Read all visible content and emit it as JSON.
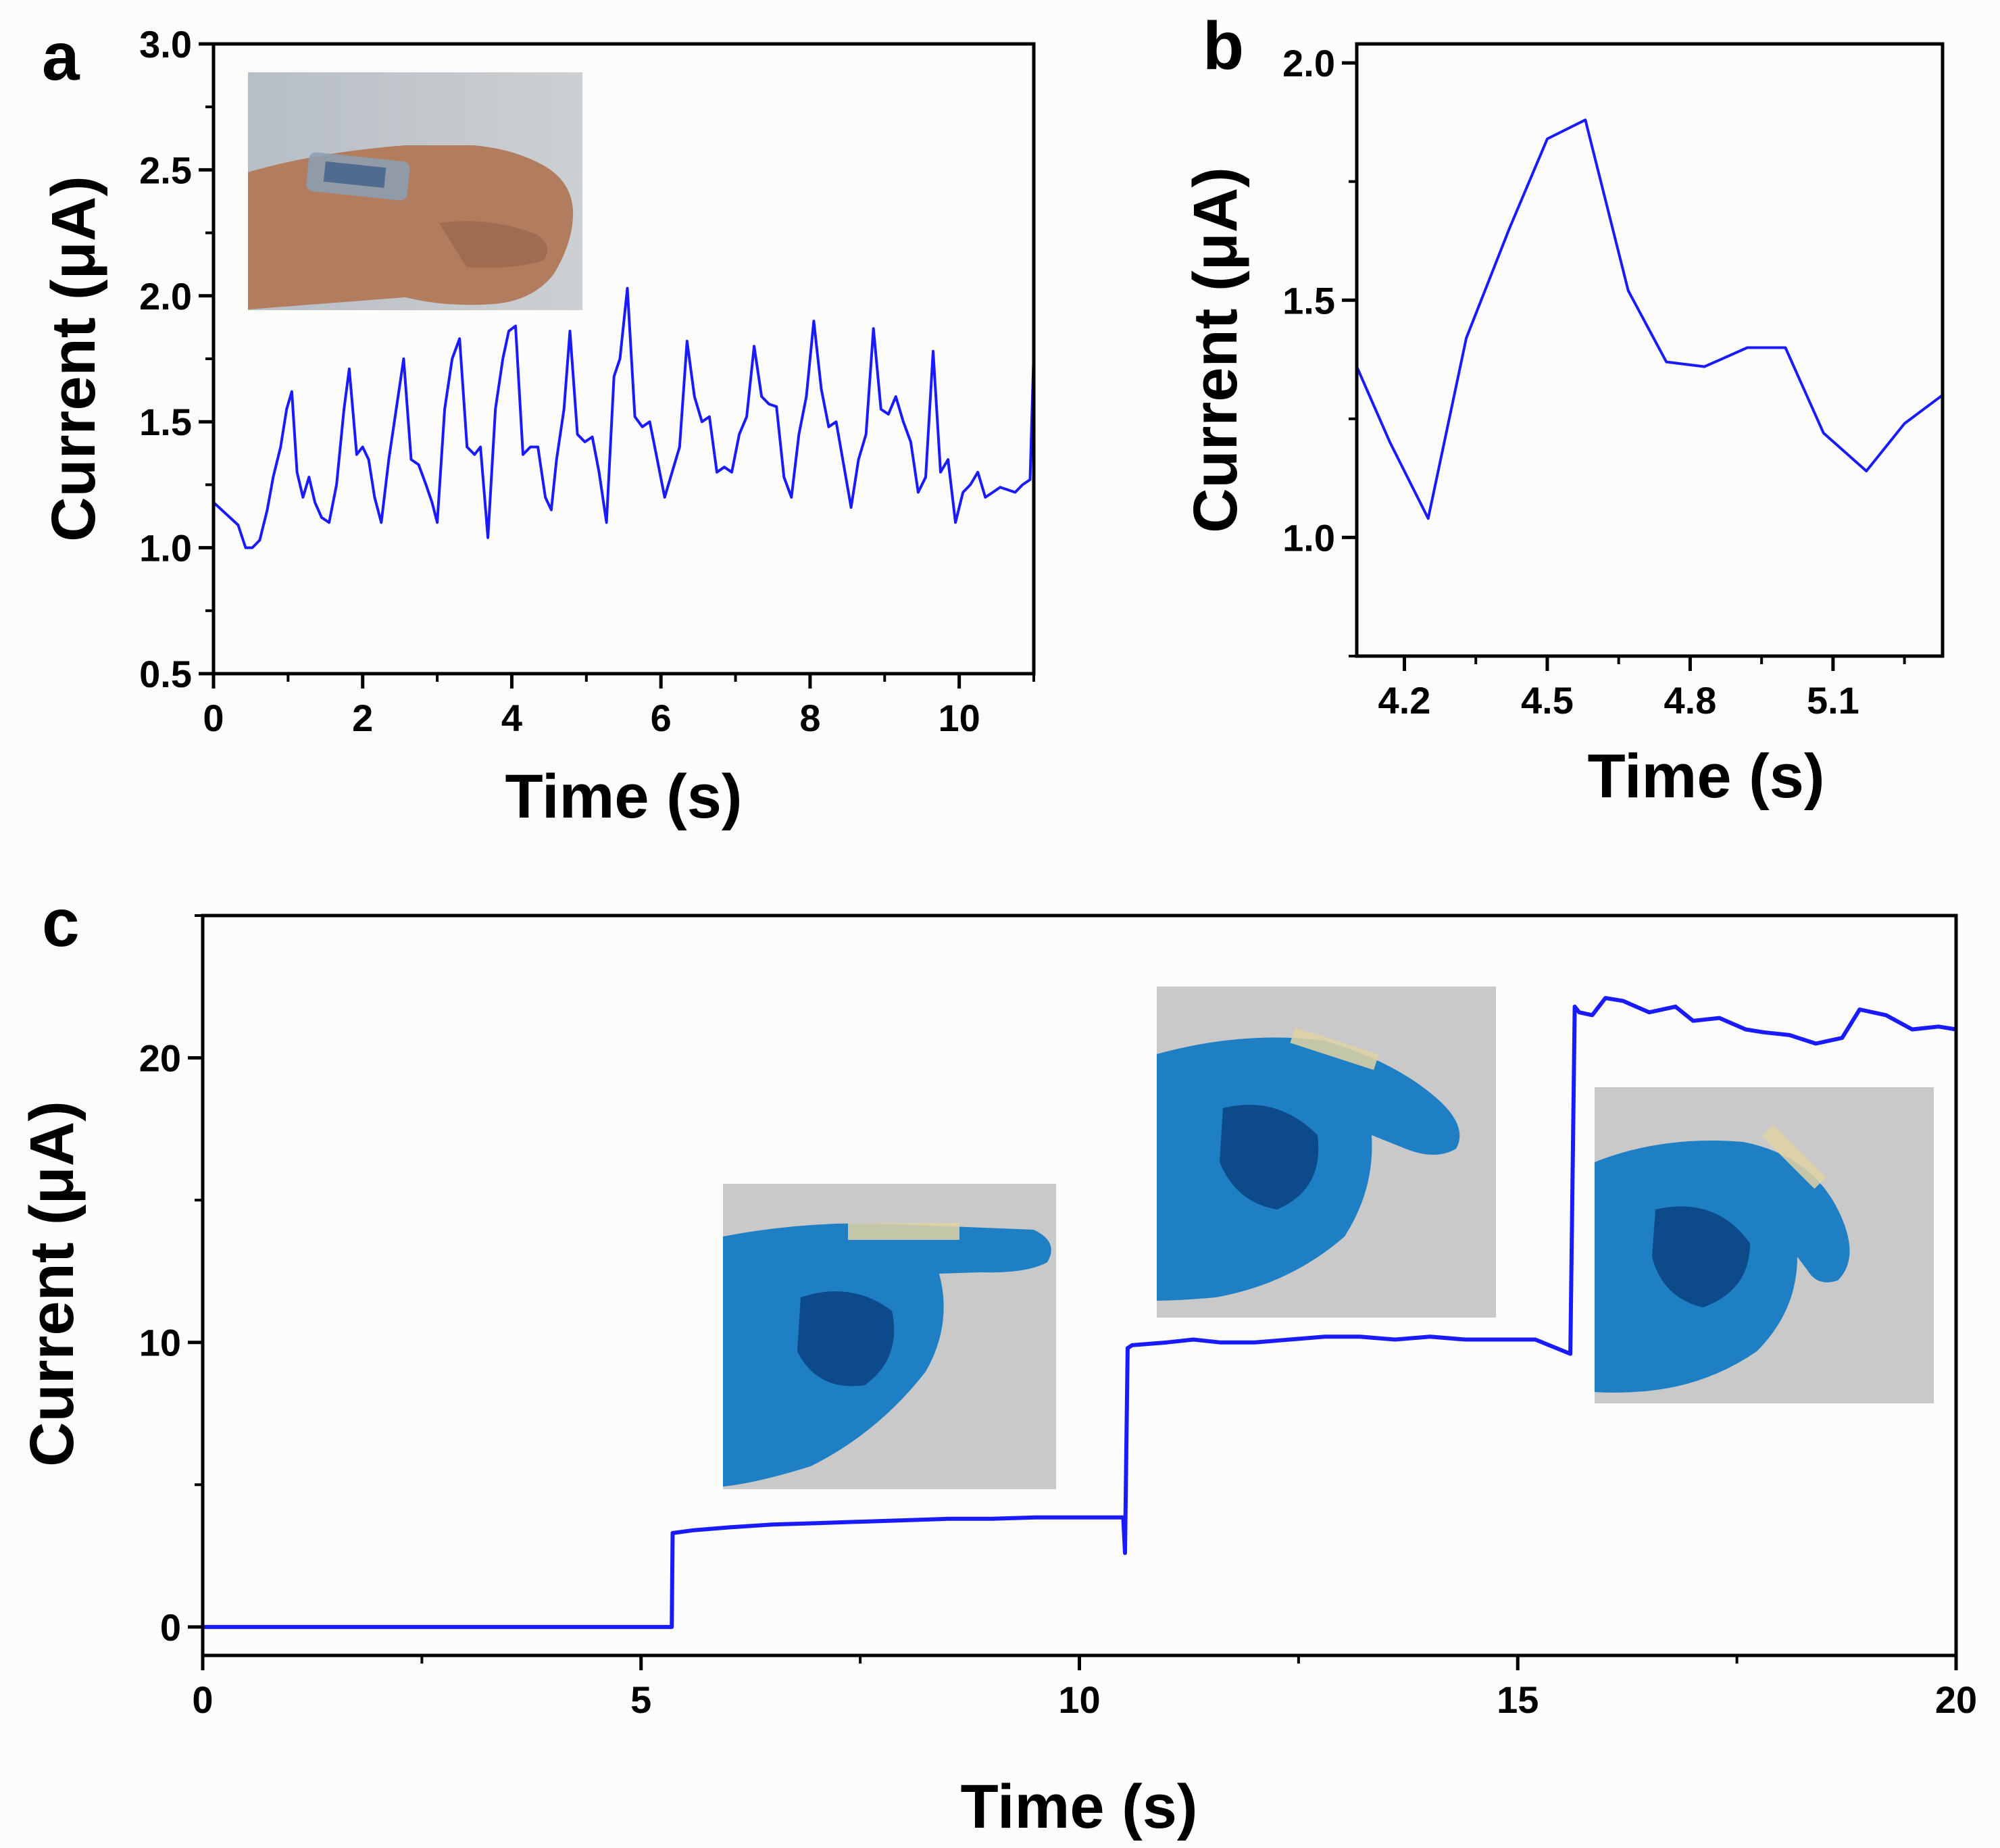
{
  "chart_data": [
    {
      "panel": "a",
      "type": "line",
      "xlabel": "Time (s)",
      "ylabel": "Current (μA)",
      "xlim": [
        0,
        11
      ],
      "ylim": [
        0.5,
        3.0
      ],
      "xticks": [
        0,
        2,
        4,
        6,
        8,
        10
      ],
      "yticks": [
        0.5,
        1.0,
        1.5,
        2.0,
        2.5,
        3.0
      ],
      "xtick_labels": [
        "0",
        "2",
        "4",
        "6",
        "8",
        "10"
      ],
      "ytick_labels": [
        "0.5",
        "1.0",
        "1.5",
        "2.0",
        "2.5",
        "3.0"
      ],
      "inset": "photo of sensor attached to wrist of clenched fist",
      "color": "#1a1aff",
      "x": [
        0,
        0.33,
        0.43,
        0.52,
        0.62,
        0.72,
        0.8,
        0.9,
        0.98,
        1.05,
        1.12,
        1.2,
        1.28,
        1.36,
        1.45,
        1.55,
        1.65,
        1.75,
        1.82,
        1.92,
        2.0,
        2.08,
        2.16,
        2.25,
        2.35,
        2.45,
        2.55,
        2.65,
        2.75,
        2.85,
        2.93,
        3.0,
        3.1,
        3.2,
        3.3,
        3.4,
        3.5,
        3.58,
        3.68,
        3.78,
        3.88,
        3.96,
        4.05,
        4.15,
        4.25,
        4.35,
        4.45,
        4.53,
        4.6,
        4.7,
        4.78,
        4.88,
        4.98,
        5.08,
        5.17,
        5.27,
        5.37,
        5.45,
        5.55,
        5.65,
        5.75,
        5.85,
        5.95,
        6.05,
        6.15,
        6.25,
        6.35,
        6.45,
        6.55,
        6.65,
        6.75,
        6.85,
        6.95,
        7.05,
        7.15,
        7.25,
        7.35,
        7.45,
        7.55,
        7.65,
        7.75,
        7.85,
        7.95,
        8.05,
        8.15,
        8.25,
        8.35,
        8.45,
        8.55,
        8.65,
        8.75,
        8.85,
        8.95,
        9.05,
        9.15,
        9.25,
        9.35,
        9.45,
        9.55,
        9.65,
        9.75,
        9.85,
        9.95,
        10.05,
        10.15,
        10.25,
        10.35,
        10.45,
        10.55,
        10.65,
        10.75,
        10.85,
        10.95,
        11.0
      ],
      "y": [
        1.18,
        1.09,
        1.0,
        1.0,
        1.03,
        1.15,
        1.28,
        1.4,
        1.55,
        1.62,
        1.3,
        1.2,
        1.28,
        1.18,
        1.12,
        1.1,
        1.25,
        1.55,
        1.71,
        1.37,
        1.4,
        1.35,
        1.2,
        1.1,
        1.35,
        1.55,
        1.75,
        1.35,
        1.33,
        1.25,
        1.18,
        1.1,
        1.55,
        1.75,
        1.83,
        1.4,
        1.37,
        1.4,
        1.04,
        1.55,
        1.75,
        1.86,
        1.88,
        1.37,
        1.4,
        1.4,
        1.2,
        1.15,
        1.35,
        1.55,
        1.86,
        1.45,
        1.42,
        1.44,
        1.3,
        1.1,
        1.68,
        1.75,
        2.03,
        1.52,
        1.48,
        1.5,
        1.35,
        1.2,
        1.3,
        1.4,
        1.82,
        1.6,
        1.5,
        1.52,
        1.3,
        1.32,
        1.3,
        1.45,
        1.52,
        1.8,
        1.6,
        1.57,
        1.56,
        1.28,
        1.2,
        1.45,
        1.6,
        1.9,
        1.63,
        1.48,
        1.5,
        1.33,
        1.16,
        1.35,
        1.45,
        1.87,
        1.55,
        1.53,
        1.6,
        1.5,
        1.42,
        1.22,
        1.28,
        1.78,
        1.3,
        1.35,
        1.1,
        1.22,
        1.25,
        1.3,
        1.2,
        1.22,
        1.24,
        1.23,
        1.22,
        1.25,
        1.27,
        1.78
      ]
    },
    {
      "panel": "b",
      "type": "line",
      "xlabel": "Time (s)",
      "ylabel": "Current (μA)",
      "xlim": [
        4.1,
        5.33
      ],
      "ylim": [
        0.75,
        2.04
      ],
      "xticks": [
        4.2,
        4.5,
        4.8,
        5.1
      ],
      "yticks": [
        1.0,
        1.5,
        2.0
      ],
      "xtick_labels": [
        "4.2",
        "4.5",
        "4.8",
        "5.1"
      ],
      "ytick_labels": [
        "1.0",
        "1.5",
        "2.0"
      ],
      "color": "#1a1aff",
      "x": [
        4.1,
        4.17,
        4.25,
        4.33,
        4.42,
        4.5,
        4.58,
        4.67,
        4.75,
        4.83,
        4.92,
        5.0,
        5.08,
        5.17,
        5.25,
        5.33
      ],
      "y": [
        1.36,
        1.2,
        1.04,
        1.42,
        1.65,
        1.84,
        1.88,
        1.52,
        1.37,
        1.36,
        1.4,
        1.4,
        1.22,
        1.14,
        1.24,
        1.3
      ]
    },
    {
      "panel": "c",
      "type": "line",
      "xlabel": "Time (s)",
      "ylabel": "Current (μA)",
      "xlim": [
        0,
        20
      ],
      "ylim": [
        -1,
        25
      ],
      "xticks": [
        0,
        5,
        10,
        15,
        20
      ],
      "yticks": [
        0,
        10,
        20
      ],
      "xtick_labels": [
        "0",
        "5",
        "10",
        "15",
        "20"
      ],
      "ytick_labels": [
        "0",
        "10",
        "20"
      ],
      "insets": [
        "photo of gloved finger straight with sensor",
        "photo of gloved finger slightly bent",
        "photo of gloved finger fully bent"
      ],
      "color": "#1a1aff",
      "x": [
        0,
        5.35,
        5.36,
        5.6,
        6.0,
        6.5,
        7.0,
        7.5,
        8.0,
        8.5,
        9.0,
        9.5,
        10.0,
        10.5,
        10.52,
        10.55,
        10.6,
        11.0,
        11.3,
        11.6,
        12.0,
        12.4,
        12.8,
        13.2,
        13.6,
        14.0,
        14.4,
        14.8,
        15.2,
        15.6,
        15.65,
        15.7,
        15.85,
        16.0,
        16.2,
        16.5,
        16.8,
        17.0,
        17.3,
        17.6,
        17.8,
        18.1,
        18.4,
        18.7,
        18.9,
        19.2,
        19.5,
        19.8,
        20.0
      ],
      "y": [
        0,
        0,
        3.3,
        3.4,
        3.5,
        3.6,
        3.65,
        3.7,
        3.75,
        3.8,
        3.8,
        3.85,
        3.85,
        3.85,
        2.6,
        9.8,
        9.9,
        10.0,
        10.1,
        10.0,
        10.0,
        10.1,
        10.2,
        10.2,
        10.1,
        10.2,
        10.1,
        10.1,
        10.1,
        9.6,
        21.8,
        21.6,
        21.5,
        22.1,
        22.0,
        21.6,
        21.8,
        21.3,
        21.4,
        21.0,
        20.9,
        20.8,
        20.5,
        20.7,
        21.7,
        21.5,
        21.0,
        21.1,
        21.0
      ]
    }
  ]
}
